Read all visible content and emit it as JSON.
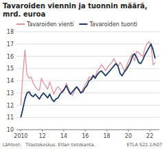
{
  "chart_data": {
    "type": "line",
    "title": "Tavaroiden viennin ja tuonnin määrä,\nmrd. euroa",
    "annotations": [
      "Lähteet:   Tilastokeskus. Etlan tietokanta.",
      "ETLA S22.1/h07"
    ],
    "x": [
      2010.0,
      2010.19231,
      2010.38462,
      2010.57693,
      2010.76924,
      2010.96155,
      2011.15386,
      2011.34617,
      2011.53848,
      2011.73079,
      2011.9231,
      2012.11541,
      2012.30772,
      2012.50003,
      2012.69234,
      2012.88465,
      2013.07696,
      2013.26927,
      2013.46158,
      2013.65389,
      2013.8462,
      2014.03851,
      2014.23082,
      2014.42313,
      2014.61544,
      2014.80775,
      2015.00006,
      2015.19237,
      2015.38468,
      2015.57699,
      2015.7693,
      2015.96161,
      2016.15392,
      2016.34623,
      2016.53854,
      2016.73085,
      2016.92316,
      2017.11547,
      2017.30778,
      2017.50009,
      2017.6924,
      2017.88471,
      2018.07702,
      2018.26933,
      2018.46164,
      2018.65395,
      2018.84626,
      2019.03857,
      2019.23088,
      2019.42319,
      2019.6155,
      2019.80781,
      2020.00012,
      2020.19243,
      2020.38474,
      2020.57705,
      2020.76936,
      2020.96167,
      2021.15398,
      2021.34629,
      2021.5386,
      2021.73091,
      2021.92322,
      2022.11553,
      2022.30784,
      2022.50015
    ],
    "series": [
      {
        "name": "Tavaroiden vienti",
        "color": "#e8909a",
        "values": [
          12.0,
          14.5,
          16.5,
          14.5,
          14.2,
          14.3,
          13.8,
          13.5,
          13.3,
          13.2,
          14.2,
          13.8,
          13.6,
          13.3,
          13.9,
          13.4,
          12.9,
          13.3,
          13.5,
          13.3,
          13.0,
          13.2,
          13.8,
          13.4,
          13.0,
          12.8,
          13.2,
          13.5,
          13.2,
          13.0,
          13.3,
          13.6,
          13.9,
          14.3,
          14.2,
          14.5,
          14.3,
          14.8,
          15.0,
          15.3,
          15.1,
          14.8,
          15.1,
          15.3,
          15.5,
          15.8,
          15.5,
          15.2,
          15.5,
          15.2,
          14.8,
          15.1,
          15.6,
          15.9,
          16.2,
          15.6,
          16.4,
          16.3,
          16.1,
          16.0,
          16.6,
          17.0,
          17.2,
          16.9,
          15.3,
          15.5
        ]
      },
      {
        "name": "Tavaroiden tuonti",
        "color": "#1b3a6b",
        "values": [
          11.0,
          11.7,
          12.5,
          13.0,
          13.1,
          12.8,
          12.7,
          12.9,
          12.7,
          12.5,
          12.8,
          13.0,
          12.8,
          12.6,
          12.9,
          12.5,
          12.3,
          12.5,
          12.6,
          12.9,
          13.1,
          13.3,
          13.6,
          13.2,
          12.9,
          13.1,
          13.3,
          13.5,
          13.3,
          13.0,
          13.1,
          13.4,
          13.6,
          14.0,
          14.1,
          14.4,
          14.2,
          14.5,
          14.7,
          14.8,
          14.6,
          14.4,
          14.6,
          14.8,
          15.0,
          15.2,
          15.4,
          15.2,
          14.6,
          14.4,
          14.7,
          14.9,
          15.2,
          15.5,
          16.0,
          16.2,
          15.9,
          15.5,
          15.4,
          15.7,
          16.1,
          16.4,
          16.7,
          17.0,
          16.5,
          15.8
        ]
      }
    ],
    "xlim": [
      2009.6,
      2022.9
    ],
    "xticks": [
      2010,
      {
        "value": 2012,
        "label": "12"
      },
      {
        "value": 2014,
        "label": "14"
      },
      {
        "value": 2016,
        "label": "16"
      },
      {
        "value": 2018,
        "label": "18"
      },
      {
        "value": 2020,
        "label": "20"
      },
      {
        "value": 2022,
        "label": "22"
      }
    ],
    "ylim": [
      10,
      18
    ],
    "yticks": [
      10,
      11,
      12,
      13,
      14,
      15,
      16,
      17,
      18
    ],
    "grid": true,
    "legend": "upper left"
  }
}
